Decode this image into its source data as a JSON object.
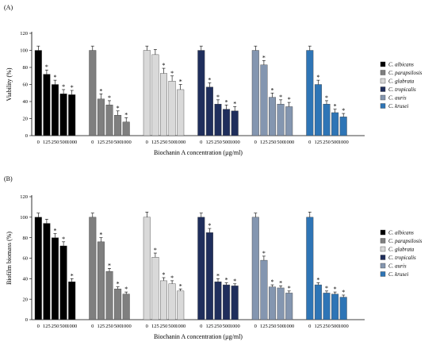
{
  "chart_data": [
    {
      "type": "bar",
      "panel_label": "(A)",
      "xlabel": "Biochanin A concentration (µg/ml)",
      "ylabel": "Viability (%)",
      "ylim": [
        0,
        120
      ],
      "yticks": [
        0,
        20,
        40,
        60,
        80,
        100,
        120
      ],
      "categories": [
        "0",
        "125",
        "250",
        "500",
        "1000"
      ],
      "series": [
        {
          "name": "C. albicans",
          "color": "#000000",
          "values": [
            100,
            72,
            60,
            49,
            48
          ],
          "errors": [
            5,
            5,
            5,
            5,
            5
          ],
          "significant": [
            false,
            true,
            true,
            true,
            true
          ]
        },
        {
          "name": "C. parapsilosis",
          "color": "#7f7f7f",
          "values": [
            100,
            43,
            36,
            24,
            16
          ],
          "errors": [
            5,
            6,
            5,
            5,
            5
          ],
          "significant": [
            false,
            true,
            true,
            true,
            true
          ]
        },
        {
          "name": "C. glabrata",
          "color": "#d9d9d9",
          "values": [
            100,
            95,
            73,
            64,
            54
          ],
          "errors": [
            5,
            6,
            6,
            6,
            6
          ],
          "significant": [
            false,
            false,
            true,
            true,
            true
          ]
        },
        {
          "name": "C. tropicalis",
          "color": "#1f2e5c",
          "values": [
            100,
            57,
            37,
            31,
            29
          ],
          "errors": [
            5,
            5,
            5,
            5,
            5
          ],
          "significant": [
            false,
            true,
            true,
            true,
            true
          ]
        },
        {
          "name": "C. auris",
          "color": "#8496b0",
          "values": [
            100,
            83,
            45,
            37,
            34
          ],
          "errors": [
            5,
            5,
            5,
            5,
            5
          ],
          "significant": [
            false,
            true,
            true,
            true,
            true
          ]
        },
        {
          "name": "C. krusei",
          "color": "#2e75b6",
          "values": [
            100,
            60,
            37,
            27,
            22
          ],
          "errors": [
            5,
            5,
            4,
            4,
            4
          ],
          "significant": [
            false,
            true,
            true,
            true,
            true
          ]
        }
      ]
    },
    {
      "type": "bar",
      "panel_label": "(B)",
      "xlabel": "Biochanin A concentration (µg/ml)",
      "ylabel": "Biofilm biomass (%)",
      "ylim": [
        0,
        120
      ],
      "yticks": [
        0,
        20,
        40,
        60,
        80,
        100,
        120
      ],
      "categories": [
        "0",
        "125",
        "250",
        "500",
        "1000"
      ],
      "series": [
        {
          "name": "C. albicans",
          "color": "#000000",
          "values": [
            100,
            94,
            80,
            72,
            37
          ],
          "errors": [
            4,
            4,
            4,
            4,
            3
          ],
          "significant": [
            false,
            false,
            true,
            true,
            true
          ]
        },
        {
          "name": "C. parapsilosis",
          "color": "#7f7f7f",
          "values": [
            100,
            76,
            47,
            30,
            25
          ],
          "errors": [
            4,
            4,
            3,
            2,
            2
          ],
          "significant": [
            false,
            true,
            true,
            true,
            true
          ]
        },
        {
          "name": "C. glabrata",
          "color": "#d9d9d9",
          "values": [
            100,
            61,
            38,
            35,
            28
          ],
          "errors": [
            5,
            4,
            3,
            3,
            2
          ],
          "significant": [
            false,
            true,
            true,
            true,
            true
          ]
        },
        {
          "name": "C. tropicalis",
          "color": "#1f2e5c",
          "values": [
            100,
            85,
            37,
            34,
            33
          ],
          "errors": [
            4,
            4,
            3,
            2,
            2
          ],
          "significant": [
            false,
            true,
            true,
            true,
            true
          ]
        },
        {
          "name": "C. auris",
          "color": "#8496b0",
          "values": [
            100,
            58,
            32,
            31,
            26
          ],
          "errors": [
            4,
            4,
            2,
            2,
            2
          ],
          "significant": [
            false,
            true,
            true,
            true,
            true
          ]
        },
        {
          "name": "C. krusei",
          "color": "#2e75b6",
          "values": [
            100,
            34,
            26,
            25,
            22
          ],
          "errors": [
            5,
            2,
            2,
            2,
            2
          ],
          "significant": [
            false,
            true,
            true,
            true,
            true
          ]
        }
      ]
    }
  ],
  "significance_symbol": "*"
}
